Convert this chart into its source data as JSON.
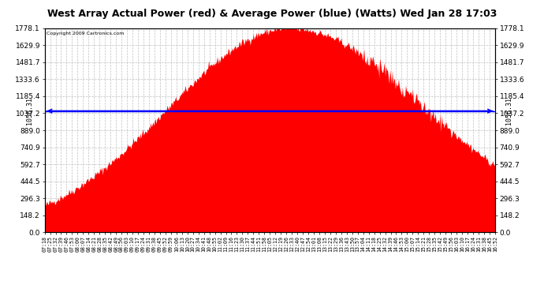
{
  "title": "West Array Actual Power (red) & Average Power (blue) (Watts) Wed Jan 28 17:03",
  "copyright": "Copyright 2009 Cartronics.com",
  "avg_power": 1056.31,
  "ymin": 0.0,
  "ymax": 1778.1,
  "yticks": [
    0.0,
    148.2,
    296.3,
    444.5,
    592.7,
    740.9,
    889.0,
    1037.2,
    1185.4,
    1333.6,
    1481.7,
    1629.9,
    1778.1
  ],
  "x_start_min": 438,
  "x_end_min": 1012,
  "interval_min": 7,
  "plot_bg_color": "#ffffff",
  "fig_bg_color": "#ffffff",
  "fill_color": "#ff0000",
  "line_color": "#0000ff",
  "grid_color": "#c0c0c0",
  "border_color": "#000000",
  "peak_time_min": 750,
  "peak_power": 1778.0,
  "sigma_rise": 155,
  "sigma_fall": 175
}
